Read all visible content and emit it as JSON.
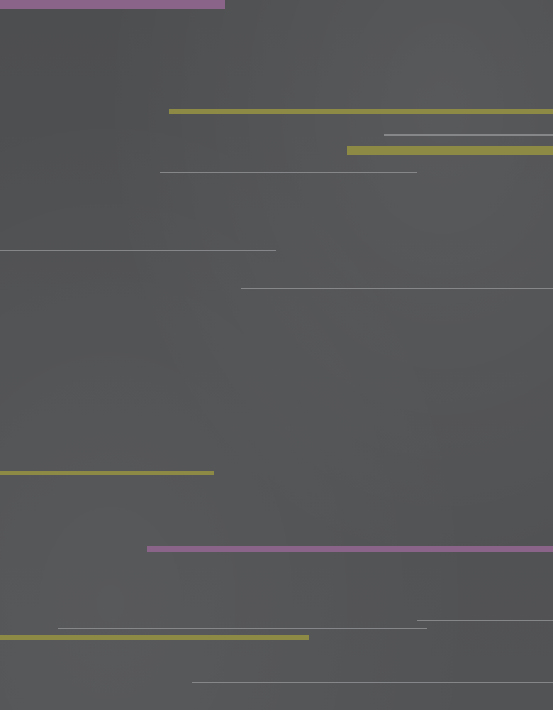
{
  "colors": {
    "background": "#4f5052",
    "purple": "#8a6489",
    "olive": "#8c8a44",
    "line_light": "#a4a5a7",
    "line_mid": "#8e8f92"
  },
  "stripes": [
    {
      "name": "purple-bar-top",
      "color": "purple"
    },
    {
      "name": "thin-line-1",
      "color": "line_light"
    },
    {
      "name": "thin-line-2",
      "color": "line_light"
    },
    {
      "name": "olive-bar-1",
      "color": "olive"
    },
    {
      "name": "thin-line-3",
      "color": "line_mid"
    },
    {
      "name": "olive-bar-2",
      "color": "olive"
    },
    {
      "name": "thin-line-4",
      "color": "line_mid"
    },
    {
      "name": "thin-line-5",
      "color": "line_mid"
    },
    {
      "name": "thin-line-6",
      "color": "line_mid"
    },
    {
      "name": "thin-line-7",
      "color": "line_mid"
    },
    {
      "name": "olive-bar-3",
      "color": "olive"
    },
    {
      "name": "purple-bar-bottom",
      "color": "purple"
    },
    {
      "name": "thin-line-8",
      "color": "line_mid"
    },
    {
      "name": "thin-line-9",
      "color": "line_mid"
    },
    {
      "name": "thin-line-10",
      "color": "line_mid"
    },
    {
      "name": "thin-line-11",
      "color": "line_mid"
    },
    {
      "name": "olive-bar-4",
      "color": "olive"
    },
    {
      "name": "thin-line-12",
      "color": "line_mid"
    }
  ]
}
